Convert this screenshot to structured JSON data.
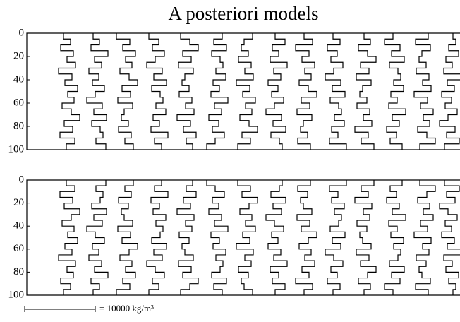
{
  "chart_data": [
    {
      "type": "step-profiles",
      "title": "A posteriori models",
      "color": "#000000",
      "xlim": [
        0,
        61400
      ],
      "ylim": [
        0,
        100
      ],
      "yticks": [
        0,
        20,
        40,
        60,
        80,
        100
      ],
      "depths": [
        0,
        5,
        10,
        15,
        20,
        25,
        30,
        35,
        40,
        45,
        50,
        55,
        60,
        65,
        70,
        75,
        80,
        85,
        90,
        95,
        100
      ],
      "series": [
        {
          "values": [
            5200,
            6200,
            4800,
            6600,
            5700,
            6900,
            4500,
            6400,
            5400,
            7200,
            5800,
            6700,
            5000,
            6300,
            7500,
            5300,
            6500,
            4700,
            6800,
            5600
          ]
        },
        {
          "values": [
            9400,
            10300,
            9100,
            11500,
            9600,
            10600,
            8800,
            10200,
            9300,
            11000,
            9700,
            8500,
            10700,
            9500,
            11300,
            9200,
            10400,
            10800,
            9800,
            11200
          ]
        },
        {
          "values": [
            12700,
            14600,
            13600,
            15400,
            14000,
            14900,
            13200,
            14500,
            15700,
            13500,
            14700,
            12900,
            15000,
            13800,
            13400,
            14400,
            13000,
            14800,
            13900,
            15100
          ]
        },
        {
          "values": [
            17300,
            18700,
            17800,
            19500,
            18200,
            17000,
            19200,
            18000,
            19800,
            17700,
            18900,
            19300,
            18300,
            19700,
            17900,
            18800,
            17600,
            20000,
            18100,
            19100
          ]
        },
        {
          "values": [
            21800,
            23100,
            24300,
            22100,
            23300,
            21500,
            23600,
            22400,
            22000,
            23000,
            21600,
            23400,
            22500,
            23700,
            21300,
            23200,
            22200,
            24000,
            22600,
            23500
          ]
        },
        {
          "values": [
            27700,
            26500,
            28300,
            26200,
            27400,
            27800,
            26800,
            28200,
            26400,
            27300,
            26100,
            28500,
            26600,
            27600,
            25800,
            27200,
            26300,
            28000,
            26700,
            25500
          ]
        },
        {
          "values": [
            32000,
            30800,
            30400,
            31400,
            30000,
            31800,
            30900,
            32100,
            29700,
            31600,
            30600,
            32400,
            31000,
            31900,
            30200,
            31500,
            32700,
            30500,
            31700,
            29900
          ]
        },
        {
          "values": [
            35200,
            36600,
            34800,
            35700,
            34500,
            36900,
            35000,
            36000,
            34200,
            35600,
            34700,
            36400,
            35100,
            33900,
            36100,
            34900,
            36700,
            34600,
            35800,
            36200
          ]
        },
        {
          "values": [
            39300,
            40500,
            38100,
            40000,
            39000,
            40800,
            39400,
            40300,
            38600,
            39900,
            41100,
            38900,
            40100,
            38300,
            40400,
            39200,
            38800,
            39800,
            38400,
            40200
          ]
        },
        {
          "values": [
            43400,
            44400,
            42600,
            44000,
            43100,
            44800,
            43500,
            42300,
            44500,
            43300,
            45100,
            43000,
            44200,
            44600,
            43600,
            45000,
            43200,
            44100,
            42900,
            45300
          ]
        },
        {
          "values": [
            47800,
            48700,
            47000,
            48300,
            49500,
            47300,
            48500,
            46700,
            48800,
            47600,
            47200,
            48200,
            46800,
            48600,
            47700,
            48900,
            46500,
            48400,
            47400,
            49200
          ]
        },
        {
          "values": [
            51900,
            50700,
            52900,
            51700,
            53500,
            51400,
            52600,
            53000,
            52000,
            53400,
            51600,
            52500,
            51300,
            53700,
            51800,
            52800,
            51000,
            52400,
            51500,
            53200
          ]
        },
        {
          "values": [
            56900,
            55100,
            57200,
            56000,
            55600,
            56600,
            55200,
            57000,
            56100,
            57300,
            54900,
            56800,
            55800,
            57600,
            56200,
            57100,
            55400,
            56700,
            57900,
            55700
          ]
        },
        {
          "values": [
            60400,
            60800,
            59800,
            61200,
            59400,
            60300,
            59100,
            61500,
            59600,
            60600,
            58800,
            60200,
            59300,
            61000,
            59700,
            58500,
            60700,
            59500,
            61300,
            59200
          ]
        }
      ]
    },
    {
      "type": "step-profiles",
      "color": "#000000",
      "xlim": [
        0,
        61400
      ],
      "ylim": [
        0,
        100
      ],
      "yticks": [
        0,
        20,
        40,
        60,
        80,
        100
      ],
      "depths": [
        0,
        5,
        10,
        15,
        20,
        25,
        30,
        35,
        40,
        45,
        50,
        55,
        60,
        65,
        70,
        75,
        80,
        85,
        90,
        95,
        100
      ],
      "series": [
        {
          "values": [
            5600,
            6800,
            4700,
            6500,
            5300,
            7500,
            6300,
            5000,
            6700,
            5800,
            7200,
            5400,
            6400,
            4500,
            6900,
            5700,
            6600,
            4800,
            6200,
            5200
          ]
        },
        {
          "values": [
            11200,
            9800,
            10800,
            10400,
            9200,
            11300,
            9500,
            10700,
            8500,
            9700,
            11000,
            9300,
            10200,
            8800,
            10600,
            9600,
            11500,
            9100,
            10300,
            9400
          ]
        },
        {
          "values": [
            15100,
            13900,
            14800,
            13000,
            14400,
            13400,
            13800,
            15000,
            12900,
            14700,
            13500,
            15700,
            14500,
            13200,
            14900,
            14000,
            15400,
            13600,
            14600,
            12700
          ]
        },
        {
          "values": [
            19100,
            18100,
            20000,
            17600,
            18800,
            17900,
            19700,
            18300,
            19300,
            18900,
            17700,
            19800,
            18000,
            19200,
            17000,
            18200,
            19500,
            17800,
            18700,
            17300
          ]
        },
        {
          "values": [
            23500,
            22600,
            24000,
            22200,
            23200,
            21300,
            23700,
            22500,
            23400,
            21600,
            23000,
            22000,
            22400,
            23600,
            21500,
            23300,
            22100,
            24300,
            23100,
            21800
          ]
        },
        {
          "values": [
            25500,
            26700,
            28000,
            26300,
            27200,
            25800,
            27600,
            26600,
            28500,
            26100,
            27300,
            26400,
            28200,
            26800,
            27800,
            27400,
            26200,
            28300,
            26500,
            27700
          ]
        },
        {
          "values": [
            29900,
            31700,
            30500,
            32700,
            31500,
            30200,
            31900,
            31000,
            32400,
            30600,
            31600,
            29700,
            32100,
            30900,
            31800,
            30000,
            31400,
            30400,
            30800,
            32000
          ]
        },
        {
          "values": [
            36200,
            35800,
            34600,
            36700,
            34900,
            36100,
            33900,
            35100,
            36400,
            34700,
            35600,
            34200,
            36000,
            35000,
            36900,
            34500,
            35700,
            34800,
            36600,
            35200
          ]
        },
        {
          "values": [
            40200,
            38400,
            39800,
            38800,
            39200,
            40400,
            38300,
            40100,
            38900,
            41100,
            39900,
            38600,
            40300,
            39400,
            40800,
            39000,
            40000,
            38100,
            40500,
            39300
          ]
        },
        {
          "values": [
            45300,
            42900,
            44100,
            43200,
            45000,
            43600,
            44600,
            44200,
            43000,
            45100,
            43300,
            44500,
            42300,
            43500,
            44800,
            43100,
            44000,
            42600,
            44400,
            43400
          ]
        },
        {
          "values": [
            49200,
            47400,
            48400,
            46500,
            48900,
            47700,
            48600,
            46800,
            48200,
            47200,
            47600,
            48800,
            46700,
            48500,
            47300,
            49500,
            48300,
            47000,
            48700,
            47800
          ]
        },
        {
          "values": [
            53200,
            51500,
            52400,
            51000,
            52800,
            51800,
            53700,
            51300,
            52500,
            51600,
            53400,
            52000,
            53000,
            52600,
            51400,
            53500,
            51700,
            52900,
            50700,
            51900
          ]
        },
        {
          "values": [
            55700,
            57900,
            56700,
            55400,
            57100,
            56200,
            57600,
            55800,
            56800,
            54900,
            57300,
            56100,
            57000,
            55200,
            56600,
            55600,
            56000,
            57200,
            55100,
            56900
          ]
        },
        {
          "values": [
            59200,
            61300,
            59500,
            60700,
            58500,
            59700,
            61000,
            59300,
            60200,
            58800,
            60600,
            59600,
            61500,
            59100,
            60300,
            59400,
            61200,
            59800,
            60800,
            60400
          ]
        }
      ],
      "scale_bar": {
        "value": 10000,
        "label": "= 10000 kg/m³"
      }
    }
  ]
}
